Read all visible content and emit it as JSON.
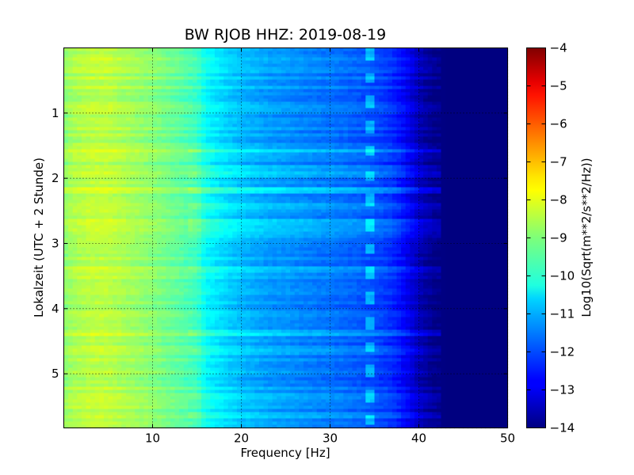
{
  "chart_data": {
    "type": "heatmap",
    "title": "BW RJOB HHZ: 2019-08-19",
    "xlabel": "Frequency [Hz]",
    "ylabel": "Lokalzeit (UTC + 2 Stunde)",
    "xlim": [
      0,
      50
    ],
    "ylim": [
      5.83,
      0
    ],
    "x_ticks": [
      10,
      20,
      30,
      40,
      50
    ],
    "x_tick_labels": [
      "10",
      "20",
      "30",
      "40",
      "50"
    ],
    "y_ticks": [
      1,
      2,
      3,
      4,
      5
    ],
    "y_tick_labels": [
      "1",
      "2",
      "3",
      "4",
      "5"
    ],
    "grid": true,
    "colormap": "jet",
    "colorbar": {
      "label": "Log10(Sqrt(m**2/s**2/Hz))",
      "range": [
        -14,
        -4
      ],
      "ticks": [
        -4,
        -5,
        -6,
        -7,
        -8,
        -9,
        -10,
        -11,
        -12,
        -13,
        -14
      ],
      "tick_labels": [
        "−4",
        "−5",
        "−6",
        "−7",
        "−8",
        "−9",
        "−10",
        "−11",
        "−12",
        "−13",
        "−14"
      ]
    },
    "frequency_profile": {
      "x": [
        0,
        1,
        3,
        5,
        7,
        10,
        13,
        15,
        16,
        18,
        20,
        23,
        25,
        28,
        30,
        33,
        35,
        37,
        38,
        39,
        40,
        41,
        42,
        43,
        50
      ],
      "y": [
        -8.9,
        -8.6,
        -8.4,
        -8.4,
        -8.6,
        -8.9,
        -9.3,
        -9.6,
        -10.2,
        -10.6,
        -10.9,
        -11.2,
        -11.3,
        -11.5,
        -11.6,
        -11.8,
        -12.0,
        -12.3,
        -12.6,
        -13.0,
        -13.4,
        -13.7,
        -13.9,
        -14.0,
        -14.0
      ]
    },
    "loud_time_bands": [
      {
        "t": [
          1.55,
          1.6
        ],
        "level_offset": 0.6
      },
      {
        "t": [
          1.8,
          2.0
        ],
        "level_offset": 0.5
      },
      {
        "t": [
          2.15,
          2.25
        ],
        "level_offset": 0.7
      },
      {
        "t": [
          2.4,
          2.5
        ],
        "level_offset": 0.5
      },
      {
        "t": [
          2.6,
          2.9
        ],
        "level_offset": 0.5
      },
      {
        "t": [
          3.35,
          3.45
        ],
        "level_offset": 0.3
      },
      {
        "t": [
          4.3,
          4.4
        ],
        "level_offset": 0.5
      },
      {
        "t": [
          4.6,
          4.7
        ],
        "level_offset": 0.3
      },
      {
        "t": [
          5.3,
          5.4
        ],
        "level_offset": 0.3
      },
      {
        "t": [
          5.6,
          5.7
        ],
        "level_offset": 0.5
      }
    ],
    "narrowband_line_hz": 34.5
  }
}
